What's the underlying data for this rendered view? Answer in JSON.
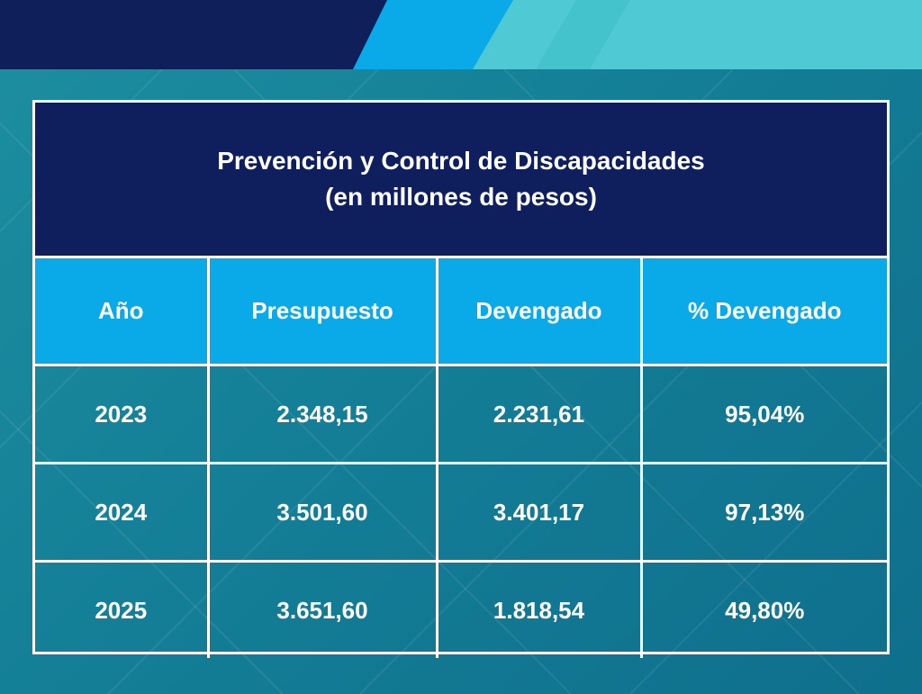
{
  "chart_data": {
    "type": "table",
    "title": "Prevención y Control de Discapacidades",
    "subtitle": "(en millones de pesos)",
    "columns": [
      "Año",
      "Presupuesto",
      "Devengado",
      "% Devengado"
    ],
    "rows": [
      [
        "2023",
        "2.348,15",
        "2.231,61",
        "95,04%"
      ],
      [
        "2024",
        "3.501,60",
        "3.401,17",
        "97,13%"
      ],
      [
        "2025",
        "3.651,60",
        "1.818,54",
        "49,80%"
      ]
    ]
  },
  "colors": {
    "title_background": "#0f1f5e",
    "header_background": "#0aaae9",
    "page_background": "#147f97",
    "top_bar_dark": "#0e1f5a",
    "top_bar_blue": "#0aaae9",
    "top_bar_teal": "#4fc9d3",
    "text": "#ffffff"
  }
}
